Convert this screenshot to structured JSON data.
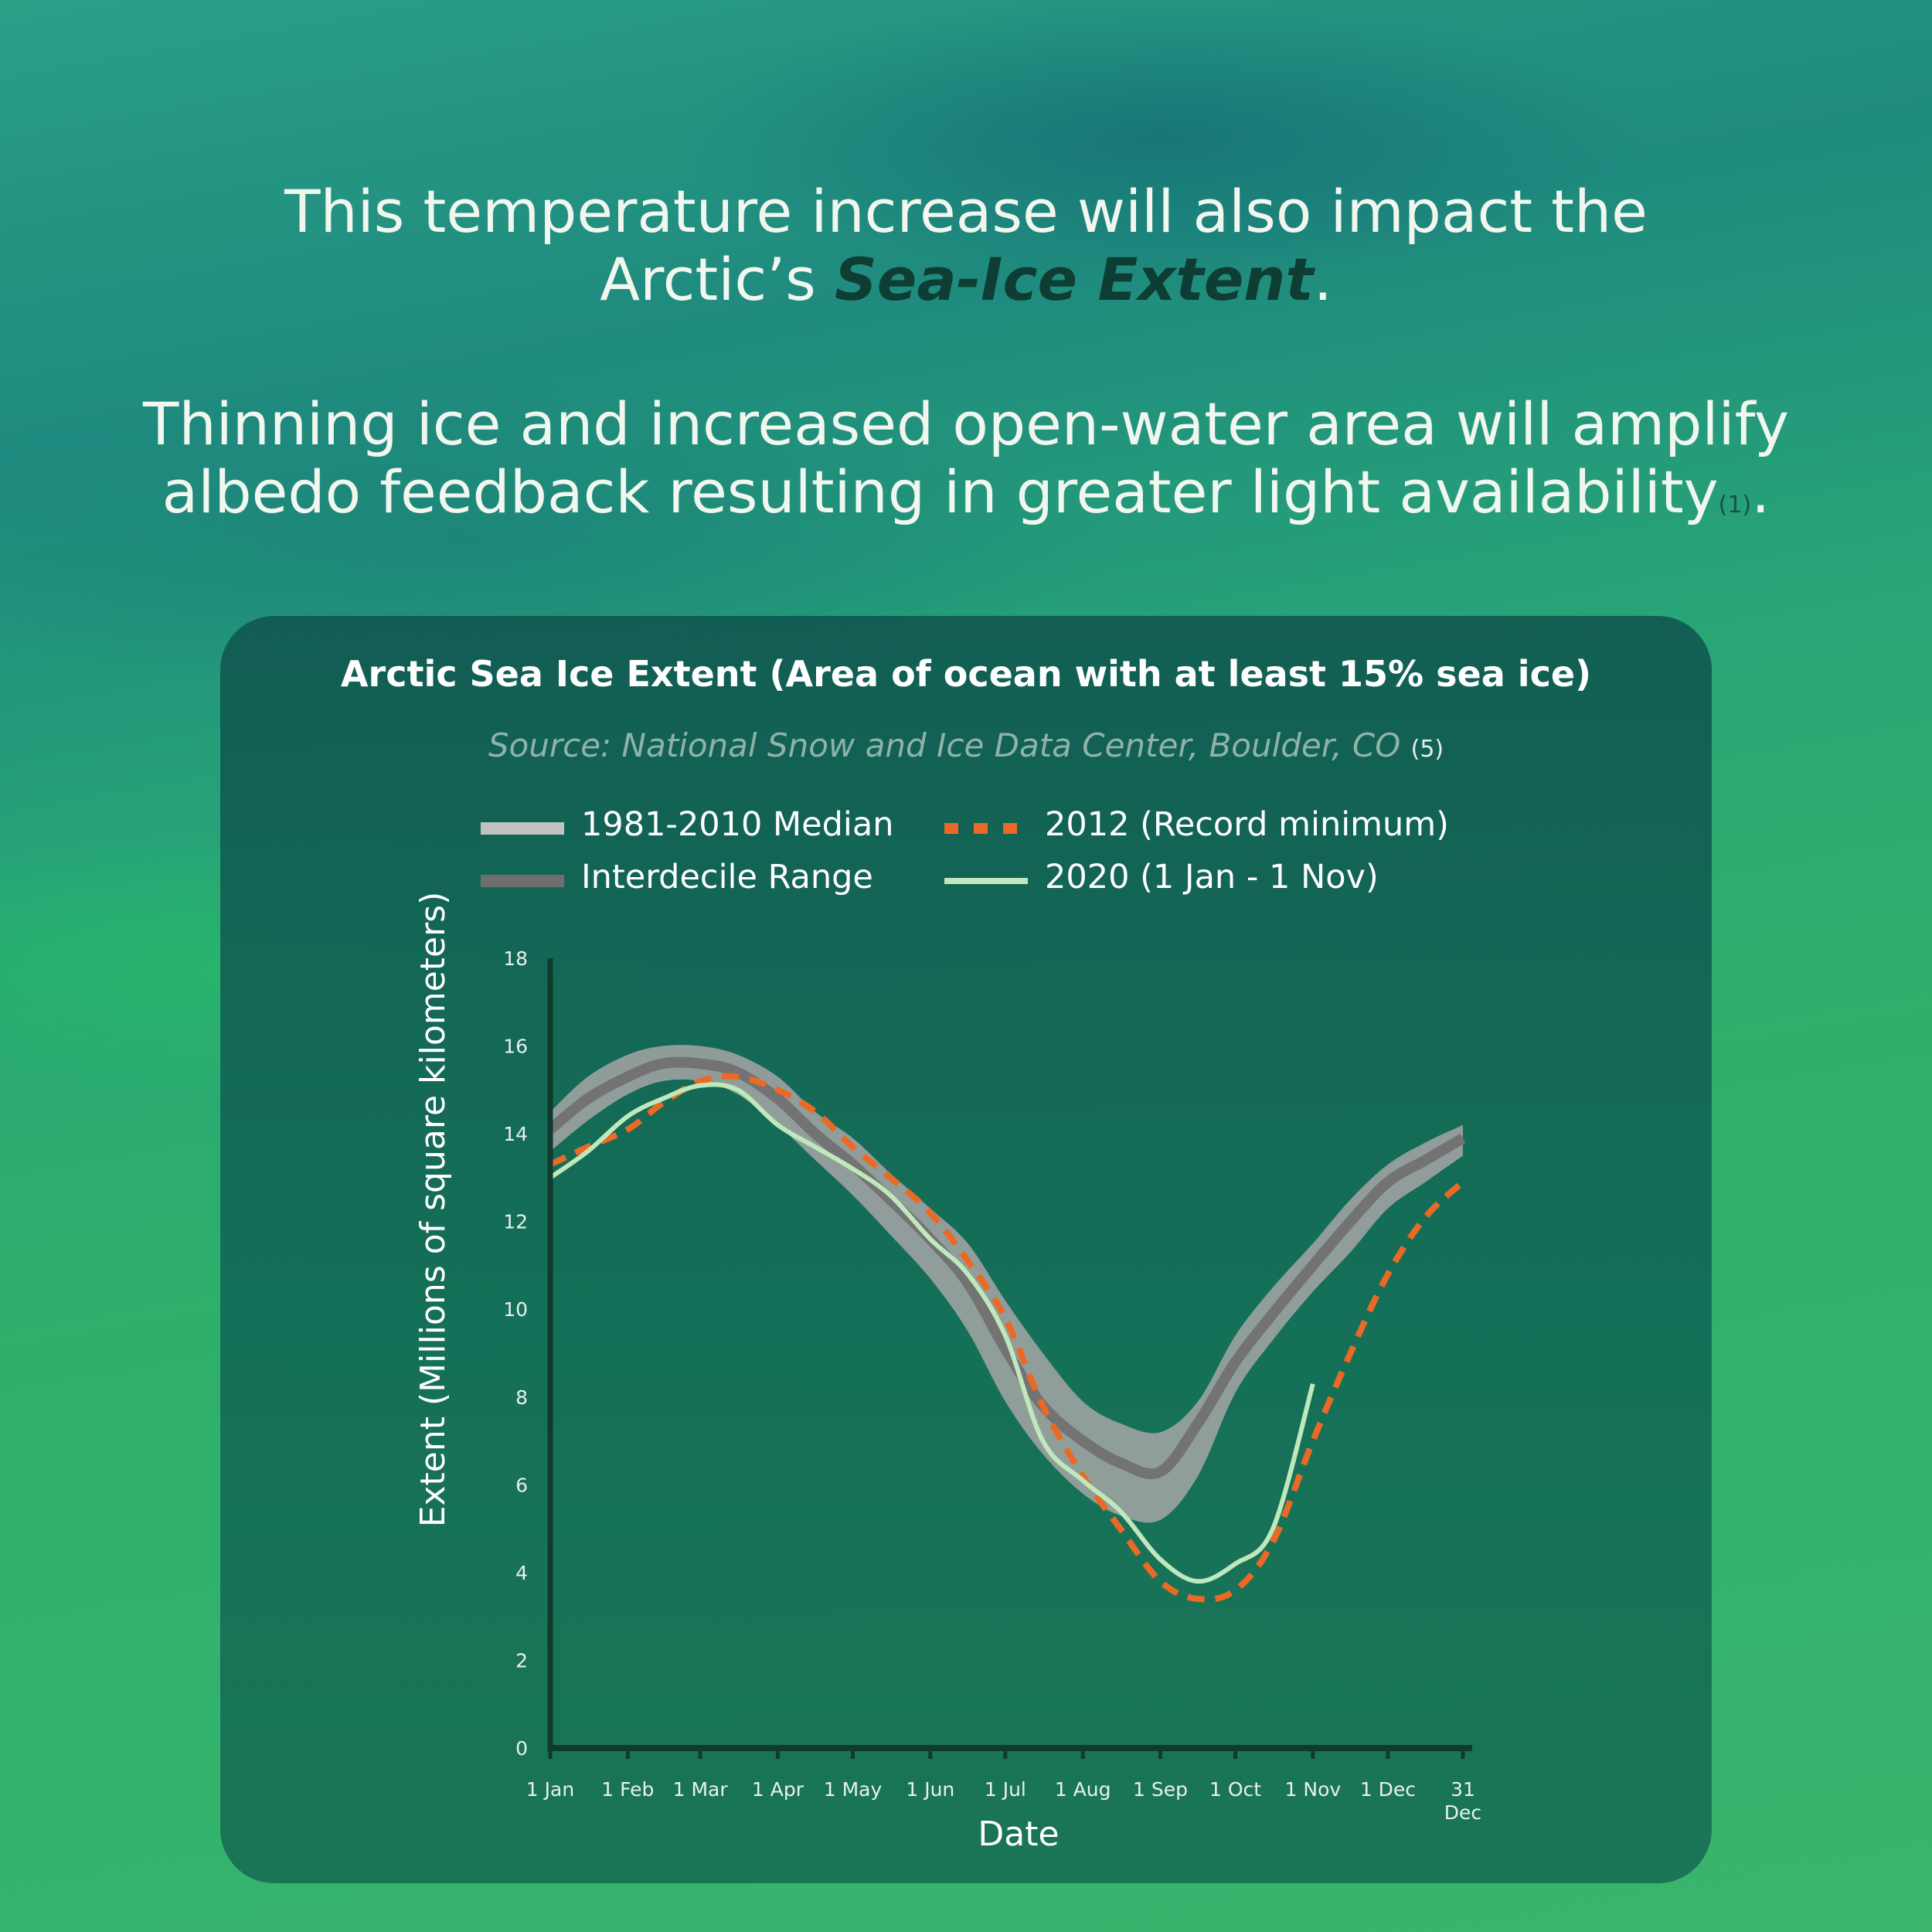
{
  "headline1": {
    "line1": "This temperature increase will also impact the",
    "prefix": "Arctic’s ",
    "emphasis": "Sea-Ice Extent",
    "suffix": "."
  },
  "headline2": {
    "line1": "Thinning ice and increased open-water area will amplify",
    "line2": "albedo feedback resulting in greater light availability",
    "citation": "(1)",
    "suffix": "."
  },
  "source": {
    "text": "Source: National Snow and Ice Data Center, Boulder, CO",
    "citation": "(5)"
  },
  "colors": {
    "median": "#737373",
    "median_legend": "#c2c2c2",
    "interdecile_band": "#a6a6a6",
    "interdecile_legend": "#6e6e6e",
    "record_2012": "#ea6a25",
    "year_2020": "#bfe8bc",
    "axis": "#0f3a2c"
  },
  "chart_data": {
    "type": "line",
    "title": "Arctic Sea Ice Extent (Area of ocean with at least 15% sea ice)",
    "xlabel": "Date",
    "ylabel": "Extent (Millions of square kilometers)",
    "ylim": [
      0,
      18
    ],
    "yticks": [
      "0",
      "2",
      "4",
      "6",
      "8",
      "10",
      "12",
      "14",
      "16",
      "18"
    ],
    "xlim": [
      1,
      366
    ],
    "xticks": [
      {
        "day": 1,
        "label": "1 Jan"
      },
      {
        "day": 32,
        "label": "1 Feb"
      },
      {
        "day": 61,
        "label": "1 Mar"
      },
      {
        "day": 92,
        "label": "1 Apr"
      },
      {
        "day": 122,
        "label": "1 May"
      },
      {
        "day": 153,
        "label": "1 Jun"
      },
      {
        "day": 183,
        "label": "1 Jul"
      },
      {
        "day": 214,
        "label": "1 Aug"
      },
      {
        "day": 245,
        "label": "1 Sep"
      },
      {
        "day": 275,
        "label": "1 Oct"
      },
      {
        "day": 306,
        "label": "1 Nov"
      },
      {
        "day": 336,
        "label": "1 Dec"
      },
      {
        "day": 366,
        "label": "31 Dec"
      }
    ],
    "legend": [
      {
        "label": "1981-2010 Median",
        "key": "median"
      },
      {
        "label": "2012 (Record minimum)",
        "key": "record_2012"
      },
      {
        "label": "Interdecile Range",
        "key": "interdecile"
      },
      {
        "label": "2020 (1 Jan - 1 Nov)",
        "key": "year_2020"
      }
    ],
    "x": [
      1,
      16,
      32,
      46,
      61,
      76,
      92,
      107,
      122,
      137,
      153,
      168,
      183,
      198,
      214,
      229,
      245,
      260,
      275,
      290,
      306,
      321,
      336,
      351,
      366
    ],
    "series": [
      {
        "name": "1981-2010 Median",
        "key": "median",
        "values": [
          14.1,
          14.8,
          15.3,
          15.6,
          15.6,
          15.4,
          14.8,
          14.0,
          13.3,
          12.5,
          11.6,
          10.6,
          9.1,
          7.8,
          7.0,
          6.5,
          6.3,
          7.4,
          8.8,
          9.9,
          11.0,
          12.0,
          12.9,
          13.4,
          13.9
        ]
      },
      {
        "name": "Interdecile Range",
        "key": "interdecile",
        "low": [
          13.6,
          14.3,
          14.9,
          15.2,
          15.2,
          14.9,
          14.2,
          13.4,
          12.6,
          11.7,
          10.7,
          9.5,
          7.9,
          6.7,
          5.8,
          5.3,
          5.2,
          6.2,
          8.1,
          9.3,
          10.4,
          11.3,
          12.3,
          12.9,
          13.5
        ],
        "high": [
          14.5,
          15.3,
          15.8,
          16.0,
          16.0,
          15.8,
          15.3,
          14.5,
          13.9,
          13.1,
          12.3,
          11.5,
          10.2,
          9.0,
          7.9,
          7.4,
          7.2,
          7.9,
          9.4,
          10.5,
          11.5,
          12.5,
          13.3,
          13.8,
          14.2
        ]
      }
    ],
    "record_2012": {
      "x": [
        1,
        16,
        32,
        46,
        61,
        76,
        92,
        107,
        122,
        137,
        153,
        168,
        183,
        198,
        214,
        229,
        245,
        260,
        275,
        290,
        306,
        321,
        336,
        351,
        366
      ],
      "values": [
        13.3,
        13.7,
        14.1,
        14.7,
        15.2,
        15.3,
        15.0,
        14.5,
        13.7,
        13.0,
        12.2,
        11.1,
        9.8,
        7.8,
        6.2,
        5.0,
        3.8,
        3.4,
        3.6,
        4.7,
        7.0,
        9.0,
        10.8,
        12.1,
        12.9
      ]
    },
    "year_2020": {
      "x": [
        1,
        16,
        32,
        46,
        61,
        76,
        92,
        107,
        122,
        137,
        153,
        168,
        183,
        198,
        214,
        229,
        245,
        260,
        275,
        290,
        306
      ],
      "values": [
        13.0,
        13.6,
        14.4,
        14.8,
        15.1,
        15.0,
        14.2,
        13.7,
        13.2,
        12.6,
        11.6,
        10.8,
        9.4,
        7.0,
        6.1,
        5.4,
        4.3,
        3.8,
        4.2,
        5.0,
        8.3
      ]
    }
  }
}
